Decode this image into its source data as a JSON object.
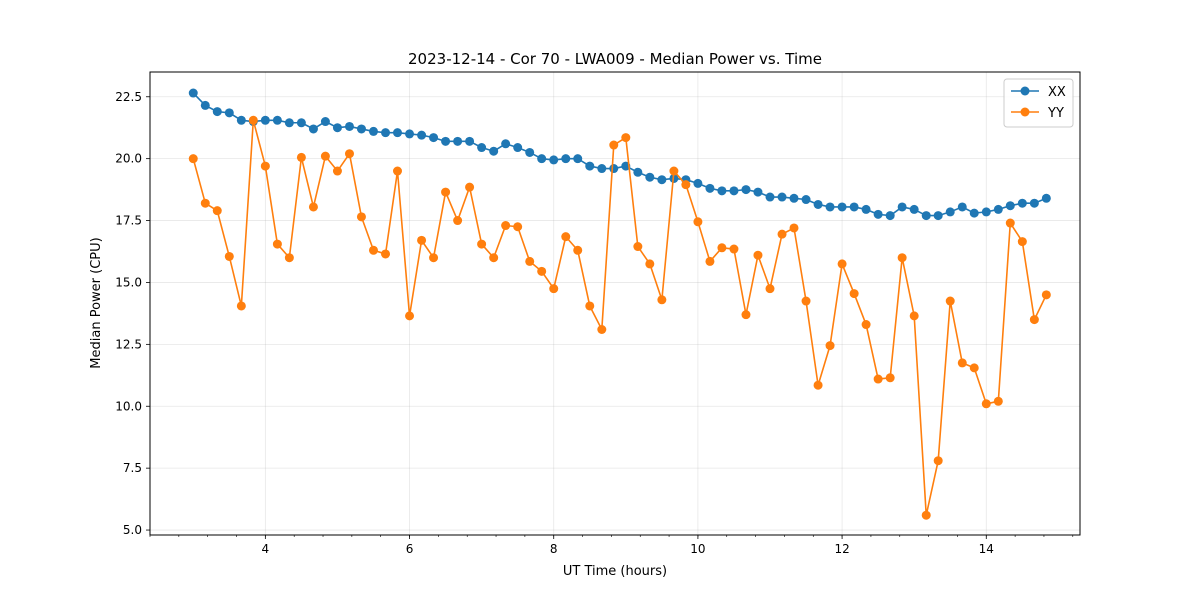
{
  "chart_data": {
    "type": "line",
    "title": "2023-12-14 - Cor 70 - LWA009 - Median Power vs. Time",
    "xlabel": "UT Time (hours)",
    "ylabel": "Median Power (CPU)",
    "xlim": [
      2.4,
      15.3
    ],
    "ylim": [
      4.8,
      23.5
    ],
    "xticks": [
      4,
      6,
      8,
      10,
      12,
      14
    ],
    "xtick_labels": [
      "4",
      "6",
      "8",
      "10",
      "12",
      "14"
    ],
    "xminor_step": 0.4,
    "yticks": [
      5.0,
      7.5,
      10.0,
      12.5,
      15.0,
      17.5,
      20.0,
      22.5
    ],
    "ytick_labels": [
      "5.0",
      "7.5",
      "10.0",
      "12.5",
      "15.0",
      "17.5",
      "20.0",
      "22.5"
    ],
    "grid": true,
    "legend_position": "top-right",
    "x": [
      3.0,
      3.167,
      3.333,
      3.5,
      3.667,
      3.833,
      4.0,
      4.167,
      4.333,
      4.5,
      4.667,
      4.833,
      5.0,
      5.167,
      5.333,
      5.5,
      5.667,
      5.833,
      6.0,
      6.167,
      6.333,
      6.5,
      6.667,
      6.833,
      7.0,
      7.167,
      7.333,
      7.5,
      7.667,
      7.833,
      8.0,
      8.167,
      8.333,
      8.5,
      8.667,
      8.833,
      9.0,
      9.167,
      9.333,
      9.5,
      9.667,
      9.833,
      10.0,
      10.167,
      10.333,
      10.5,
      10.667,
      10.833,
      11.0,
      11.167,
      11.333,
      11.5,
      11.667,
      11.833,
      12.0,
      12.167,
      12.333,
      12.5,
      12.667,
      12.833,
      13.0,
      13.167,
      13.333,
      13.5,
      13.667,
      13.833,
      14.0,
      14.167,
      14.333,
      14.5,
      14.667,
      14.833
    ],
    "series": [
      {
        "name": "XX",
        "color": "#1f77b4",
        "values": [
          22.65,
          22.15,
          21.9,
          21.85,
          21.55,
          21.5,
          21.55,
          21.55,
          21.45,
          21.45,
          21.2,
          21.5,
          21.25,
          21.3,
          21.2,
          21.1,
          21.05,
          21.05,
          21.0,
          20.95,
          20.85,
          20.7,
          20.7,
          20.7,
          20.45,
          20.3,
          20.6,
          20.45,
          20.25,
          20.0,
          19.95,
          20.0,
          20.0,
          19.7,
          19.6,
          19.6,
          19.7,
          19.45,
          19.25,
          19.15,
          19.2,
          19.15,
          19.0,
          18.8,
          18.7,
          18.7,
          18.75,
          18.65,
          18.45,
          18.45,
          18.4,
          18.35,
          18.15,
          18.05,
          18.05,
          18.05,
          17.95,
          17.75,
          17.7,
          18.05,
          17.95,
          17.7,
          17.7,
          17.85,
          18.05,
          17.8,
          17.85,
          17.95,
          18.1,
          18.2,
          18.2,
          18.4
        ]
      },
      {
        "name": "YY",
        "color": "#ff7f0e",
        "values": [
          20.0,
          18.2,
          17.9,
          16.05,
          14.05,
          21.55,
          19.7,
          16.55,
          16.0,
          20.05,
          18.05,
          20.1,
          19.5,
          20.2,
          17.65,
          16.3,
          16.15,
          19.5,
          13.65,
          16.7,
          16.0,
          18.65,
          17.5,
          18.85,
          16.55,
          16.0,
          17.3,
          17.25,
          15.85,
          15.45,
          14.75,
          16.85,
          16.3,
          14.05,
          13.1,
          20.55,
          20.85,
          16.45,
          15.75,
          14.3,
          19.5,
          18.95,
          17.45,
          15.85,
          16.4,
          16.35,
          13.7,
          16.1,
          14.75,
          16.95,
          17.2,
          14.25,
          10.85,
          12.45,
          15.75,
          14.55,
          13.3,
          11.1,
          11.15,
          16.0,
          13.65,
          5.6,
          7.8,
          14.25,
          11.75,
          11.55,
          10.1,
          10.2,
          17.4,
          16.65,
          13.5,
          14.5
        ]
      }
    ]
  }
}
